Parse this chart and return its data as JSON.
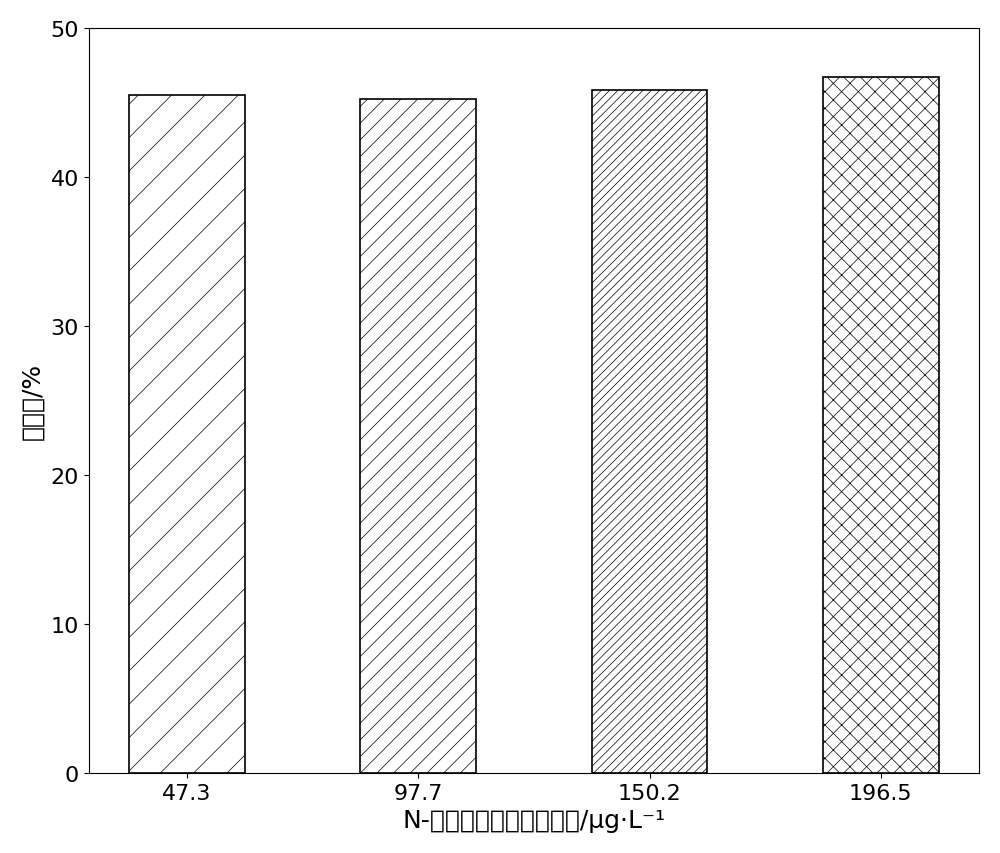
{
  "categories": [
    "47.3",
    "97.7",
    "150.2",
    "196.5"
  ],
  "values": [
    45.5,
    45.2,
    45.8,
    46.7
  ],
  "hatch_styles": [
    "/",
    "//",
    "////",
    "xx"
  ],
  "bar_color": "white",
  "bar_edgecolor": "black",
  "bar_linewidth": 1.2,
  "xlabel": "N-亚硝基二甲胺初始浓度/μg·L⁻¹",
  "ylabel": "去除率/%",
  "ylim": [
    0,
    50
  ],
  "yticks": [
    0,
    10,
    20,
    30,
    40,
    50
  ],
  "xlabel_fontsize": 18,
  "ylabel_fontsize": 18,
  "tick_fontsize": 16,
  "bar_width": 0.5,
  "figsize": [
    10.0,
    8.54
  ],
  "dpi": 100,
  "hatch_linewidth": 0.5
}
